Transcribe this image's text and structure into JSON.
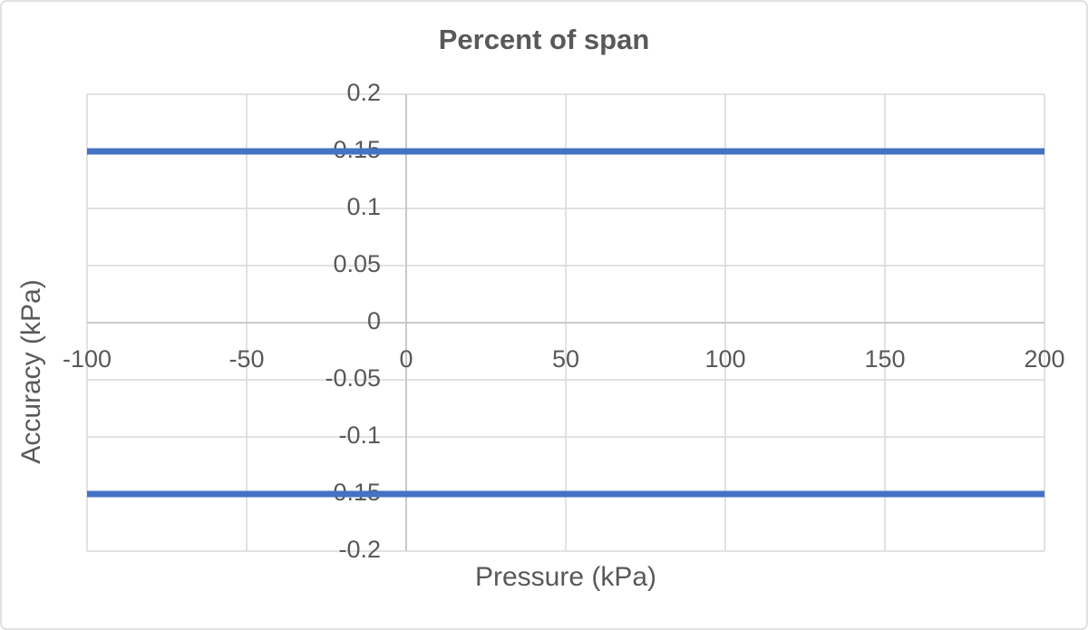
{
  "chart_data": {
    "type": "line",
    "title": "Percent of span",
    "x_label": "Pressure (kPa)",
    "y_label": "Accuracy (kPa)",
    "x": [
      -100,
      200
    ],
    "series": [
      {
        "color": "#4472c4",
        "values": [
          0.15,
          0.15
        ]
      },
      {
        "color": "#4472c4",
        "values": [
          -0.15,
          -0.15
        ]
      }
    ],
    "xlim": [
      -100,
      200
    ],
    "xticks": [
      -100,
      -50,
      0,
      50,
      100,
      150,
      200
    ],
    "ylim": [
      -0.2,
      0.2
    ],
    "yticks": [
      0.2,
      0.15,
      0.1,
      0.05,
      0,
      -0.05,
      -0.1,
      -0.15,
      -0.2
    ],
    "grid": true
  }
}
